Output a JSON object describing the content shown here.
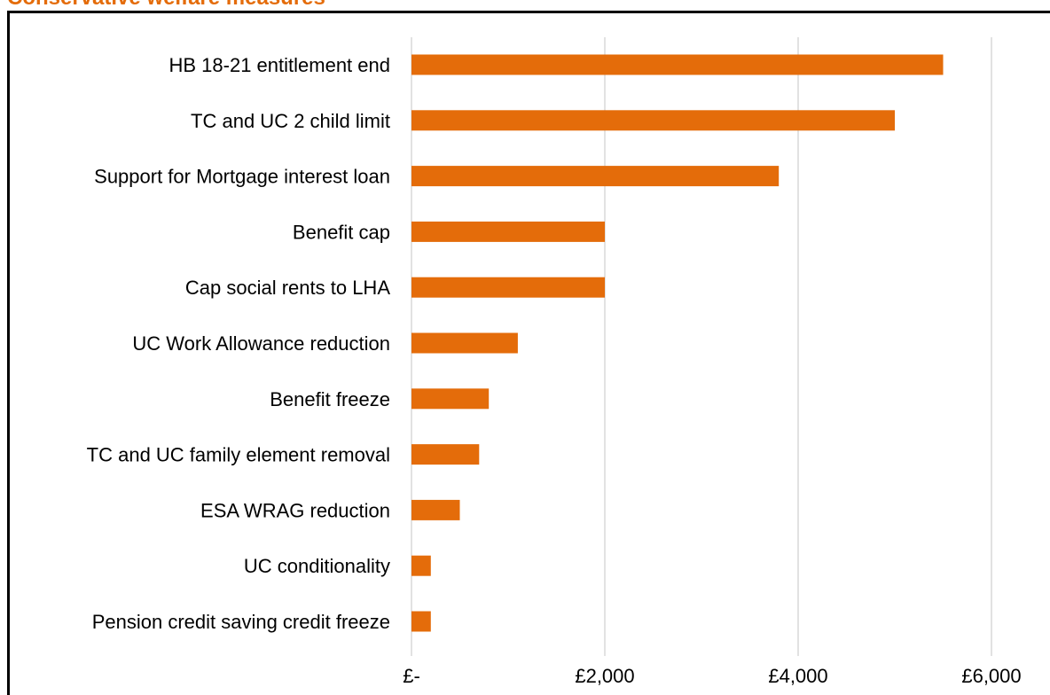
{
  "chart_data": {
    "type": "bar",
    "orientation": "horizontal",
    "title": "Conservative welfare measures",
    "categories": [
      "HB 18-21 entitlement end",
      "TC and UC 2 child limit",
      "Support for Mortgage interest loan",
      "Benefit cap",
      "Cap social rents to LHA",
      "UC Work Allowance reduction",
      "Benefit freeze",
      "TC and UC family element removal",
      "ESA WRAG reduction",
      "UC conditionality",
      "Pension credit saving credit freeze"
    ],
    "values": [
      5500,
      5000,
      3800,
      2000,
      2000,
      1100,
      800,
      700,
      500,
      200,
      200
    ],
    "xlim": [
      0,
      6000
    ],
    "x_ticks": [
      0,
      2000,
      4000,
      6000
    ],
    "x_tick_labels": [
      "£-",
      "£2,000",
      "£4,000",
      "£6,000"
    ],
    "xlabel": "",
    "ylabel": "",
    "bar_color": "#e46c0a",
    "grid_color": "#d9d9d9",
    "grid": "vertical",
    "legend": "none"
  }
}
